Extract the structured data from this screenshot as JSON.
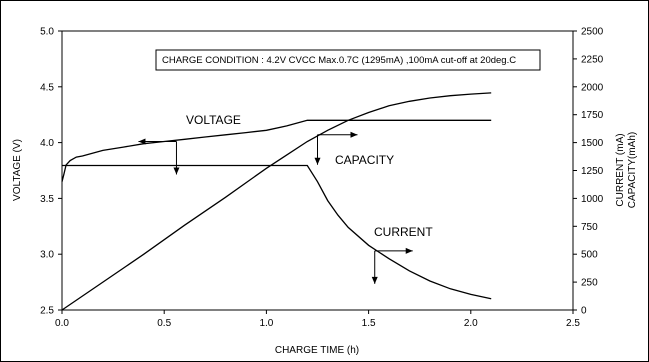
{
  "chart_data": {
    "type": "line",
    "xlabel": "CHARGE TIME (h)",
    "ylabel": "VOLTAGE (V)",
    "y2label_line1": "CURRENT (mA)",
    "y2label_line2": "CAPACITY(mAh)",
    "xlim": [
      0,
      2.5
    ],
    "ylim": [
      2.5,
      5.0
    ],
    "y2lim": [
      0,
      2500
    ],
    "xticks": [
      "0.0",
      "0.5",
      "1.0",
      "1.5",
      "2.0",
      "2.5"
    ],
    "yticks": [
      "2.5",
      "3.0",
      "3.5",
      "4.0",
      "4.5",
      "5.0"
    ],
    "y2ticks": [
      "0",
      "250",
      "500",
      "750",
      "1000",
      "1250",
      "1500",
      "1750",
      "2000",
      "2250",
      "2500"
    ],
    "condition": "CHARGE CONDITION : 4.2V CVCC Max.0.7C (1295mA) ,100mA cut-off at 20deg.C",
    "series": [
      {
        "name": "VOLTAGE",
        "axis": "left",
        "x": [
          0.0,
          0.01,
          0.02,
          0.04,
          0.07,
          0.1,
          0.2,
          0.3,
          0.4,
          0.5,
          0.6,
          0.7,
          0.8,
          0.9,
          1.0,
          1.1,
          1.2,
          1.5,
          2.1
        ],
        "y": [
          3.65,
          3.72,
          3.8,
          3.84,
          3.87,
          3.88,
          3.93,
          3.96,
          3.99,
          4.01,
          4.03,
          4.05,
          4.07,
          4.09,
          4.11,
          4.15,
          4.2,
          4.2,
          4.2
        ]
      },
      {
        "name": "CURRENT",
        "axis": "right",
        "x": [
          0.0,
          1.2,
          1.25,
          1.3,
          1.35,
          1.4,
          1.5,
          1.6,
          1.7,
          1.8,
          1.9,
          2.0,
          2.1
        ],
        "y": [
          1295,
          1295,
          1150,
          980,
          850,
          740,
          580,
          460,
          350,
          260,
          190,
          140,
          100
        ]
      },
      {
        "name": "CAPACITY",
        "axis": "right",
        "x": [
          0.0,
          0.2,
          0.4,
          0.6,
          0.8,
          1.0,
          1.1,
          1.2,
          1.3,
          1.4,
          1.5,
          1.6,
          1.7,
          1.8,
          1.9,
          2.0,
          2.1
        ],
        "y": [
          0,
          250,
          500,
          760,
          1010,
          1270,
          1390,
          1510,
          1610,
          1700,
          1770,
          1830,
          1870,
          1900,
          1920,
          1935,
          1945
        ]
      }
    ],
    "annotations": [
      {
        "text": "VOLTAGE",
        "x": 0.6,
        "y_left": 4.3
      },
      {
        "text": "CAPACITY",
        "x": 1.32,
        "y_left": 3.85
      },
      {
        "text": "CURRENT",
        "x": 1.52,
        "y_left": 3.2
      }
    ],
    "grid": false,
    "legend": "none"
  }
}
